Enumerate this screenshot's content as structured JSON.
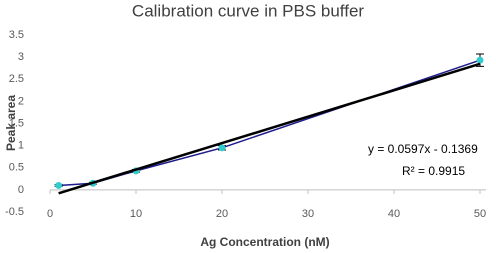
{
  "chart_data": {
    "type": "scatter",
    "title": "Calibration curve in PBS buffer",
    "x_label": "Ag Concentration (nM)",
    "y_label": "Peak area",
    "xlim": [
      0,
      50
    ],
    "ylim": [
      -0.5,
      3.5
    ],
    "xticks": [
      0,
      10,
      20,
      30,
      40,
      50
    ],
    "yticks": [
      -0.5,
      0,
      0.5,
      1,
      1.5,
      2,
      2.5,
      3,
      3.5
    ],
    "series": [
      {
        "x": [
          1,
          5,
          10,
          20,
          50
        ],
        "values": [
          0.1,
          0.15,
          0.43,
          0.95,
          2.93
        ],
        "errors": [
          0.02,
          0.02,
          0.03,
          0.05,
          0.14
        ],
        "color": "#1c1c8c",
        "marker_color": "#33cccc"
      }
    ],
    "trendline": {
      "x": [
        1,
        50
      ],
      "values": [
        -0.0772,
        2.8481
      ],
      "color": "#000000"
    },
    "annotations": [
      "y = 0.0597x - 0.1369",
      "R² = 0.9915"
    ]
  }
}
